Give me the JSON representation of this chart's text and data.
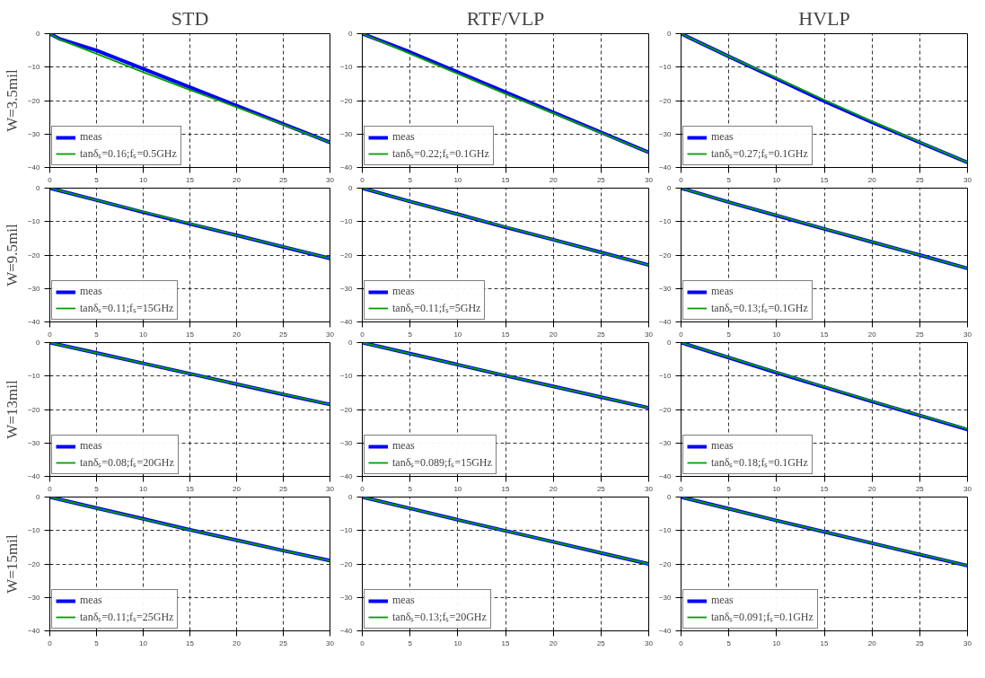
{
  "chart_data": [
    {
      "type": "line",
      "title": "STD",
      "ylabel": "W=3.5mil",
      "x": [
        0,
        1,
        5,
        10,
        15,
        20,
        25,
        30
      ],
      "xlim": [
        0,
        30
      ],
      "ylim": [
        -40,
        0
      ],
      "xticks": [
        0,
        5,
        10,
        15,
        20,
        25,
        30
      ],
      "yticks": [
        0,
        -10,
        -20,
        -30,
        -40
      ],
      "grid": true,
      "legend": "bottom left",
      "series": [
        {
          "name": "meas",
          "color": "#0000ff",
          "values": [
            0,
            -1.5,
            -5,
            -10.5,
            -16,
            -21.5,
            -27,
            -32.5
          ]
        },
        {
          "name": "tanδₛ=0.16;fₛ=0.5GHz",
          "color": "#00a000",
          "values": [
            0,
            -1.7,
            -6,
            -11.5,
            -16.8,
            -22,
            -27.2,
            -32.5
          ]
        }
      ]
    },
    {
      "type": "line",
      "title": "RTF/VLP",
      "x": [
        0,
        5,
        10,
        15,
        20,
        25,
        30
      ],
      "xlim": [
        0,
        30
      ],
      "ylim": [
        -40,
        0
      ],
      "xticks": [
        0,
        5,
        10,
        15,
        20,
        25,
        30
      ],
      "yticks": [
        0,
        -10,
        -20,
        -30,
        -40
      ],
      "grid": true,
      "legend": "bottom left",
      "series": [
        {
          "name": "meas",
          "color": "#0000ff",
          "values": [
            0,
            -5.5,
            -11.5,
            -17.5,
            -23.5,
            -29.5,
            -35.5
          ]
        },
        {
          "name": "tanδₛ=0.22;fₛ=0.1GHz",
          "color": "#00a000",
          "values": [
            0,
            -6,
            -12,
            -18,
            -23.8,
            -29.7,
            -35.5
          ]
        }
      ]
    },
    {
      "type": "line",
      "title": "HVLP",
      "x": [
        0,
        5,
        10,
        15,
        20,
        25,
        30
      ],
      "xlim": [
        0,
        30
      ],
      "ylim": [
        -40,
        0
      ],
      "xticks": [
        0,
        5,
        10,
        15,
        20,
        25,
        30
      ],
      "yticks": [
        0,
        -10,
        -20,
        -30,
        -40
      ],
      "grid": true,
      "legend": "bottom left",
      "series": [
        {
          "name": "meas",
          "color": "#0000ff",
          "values": [
            0,
            -6.8,
            -13.5,
            -20.2,
            -26.5,
            -32.5,
            -38.5
          ]
        },
        {
          "name": "tanδₛ=0.27;fₛ=0.1GHz",
          "color": "#00a000",
          "values": [
            0,
            -6.8,
            -13.2,
            -19.8,
            -26.2,
            -32.4,
            -38.5
          ]
        }
      ]
    },
    {
      "type": "line",
      "ylabel": "W=9.5mil",
      "x": [
        0,
        5,
        10,
        15,
        20,
        25,
        30
      ],
      "xlim": [
        0,
        30
      ],
      "ylim": [
        -40,
        0
      ],
      "xticks": [
        0,
        5,
        10,
        15,
        20,
        25,
        30
      ],
      "yticks": [
        0,
        -10,
        -20,
        -30,
        -40
      ],
      "grid": true,
      "legend": "bottom left",
      "series": [
        {
          "name": "meas",
          "color": "#0000ff",
          "values": [
            0,
            -3.6,
            -7.2,
            -10.7,
            -14.1,
            -17.6,
            -21
          ]
        },
        {
          "name": "tanδₛ=0.11;fₛ=15GHz",
          "color": "#00a000",
          "values": [
            0,
            -3.6,
            -7.1,
            -10.6,
            -14.1,
            -17.5,
            -21
          ]
        }
      ]
    },
    {
      "type": "line",
      "x": [
        0,
        5,
        10,
        15,
        20,
        25,
        30
      ],
      "xlim": [
        0,
        30
      ],
      "ylim": [
        -40,
        0
      ],
      "xticks": [
        0,
        5,
        10,
        15,
        20,
        25,
        30
      ],
      "yticks": [
        0,
        -10,
        -20,
        -30,
        -40
      ],
      "grid": true,
      "legend": "bottom left",
      "series": [
        {
          "name": "meas",
          "color": "#0000ff",
          "values": [
            0,
            -4,
            -7.8,
            -11.7,
            -15.4,
            -19.2,
            -23
          ]
        },
        {
          "name": "tanδₛ=0.11;fₛ=5GHz",
          "color": "#00a000",
          "values": [
            0,
            -4,
            -7.8,
            -11.6,
            -15.4,
            -19.2,
            -23
          ]
        }
      ]
    },
    {
      "type": "line",
      "x": [
        0,
        5,
        10,
        15,
        20,
        25,
        30
      ],
      "xlim": [
        0,
        30
      ],
      "ylim": [
        -40,
        0
      ],
      "xticks": [
        0,
        5,
        10,
        15,
        20,
        25,
        30
      ],
      "yticks": [
        0,
        -10,
        -20,
        -30,
        -40
      ],
      "grid": true,
      "legend": "bottom left",
      "series": [
        {
          "name": "meas",
          "color": "#0000ff",
          "values": [
            0,
            -4.2,
            -8.2,
            -12.2,
            -16.1,
            -20,
            -24
          ]
        },
        {
          "name": "tanδₛ=0.13;fₛ=0.1GHz",
          "color": "#00a000",
          "values": [
            0,
            -4.2,
            -8.1,
            -12.1,
            -16.1,
            -20,
            -24
          ]
        }
      ]
    },
    {
      "type": "line",
      "ylabel": "W=13mil",
      "x": [
        0,
        5,
        10,
        15,
        20,
        25,
        30
      ],
      "xlim": [
        0,
        30
      ],
      "ylim": [
        -40,
        0
      ],
      "xticks": [
        0,
        5,
        10,
        15,
        20,
        25,
        30
      ],
      "yticks": [
        0,
        -10,
        -20,
        -30,
        -40
      ],
      "grid": true,
      "legend": "bottom left",
      "series": [
        {
          "name": "meas",
          "color": "#0000ff",
          "values": [
            0,
            -3.1,
            -6.2,
            -9.3,
            -12.4,
            -15.5,
            -18.5
          ]
        },
        {
          "name": "tanδₛ=0.08;fₛ=20GHz",
          "color": "#00a000",
          "values": [
            0,
            -3.1,
            -6.2,
            -9.3,
            -12.4,
            -15.4,
            -18.5
          ]
        }
      ]
    },
    {
      "type": "line",
      "x": [
        0,
        5,
        10,
        15,
        20,
        25,
        30
      ],
      "xlim": [
        0,
        30
      ],
      "ylim": [
        -40,
        0
      ],
      "xticks": [
        0,
        5,
        10,
        15,
        20,
        25,
        30
      ],
      "yticks": [
        0,
        -10,
        -20,
        -30,
        -40
      ],
      "grid": true,
      "legend": "bottom left",
      "series": [
        {
          "name": "meas",
          "color": "#0000ff",
          "values": [
            0,
            -3.3,
            -6.6,
            -9.9,
            -13.1,
            -16.3,
            -19.5
          ]
        },
        {
          "name": "tanδₛ=0.089;fₛ=15GHz",
          "color": "#00a000",
          "values": [
            0,
            -3.3,
            -6.6,
            -9.8,
            -13.1,
            -16.3,
            -19.5
          ]
        }
      ]
    },
    {
      "type": "line",
      "x": [
        0,
        5,
        10,
        15,
        20,
        25,
        30
      ],
      "xlim": [
        0,
        30
      ],
      "ylim": [
        -40,
        0
      ],
      "xticks": [
        0,
        5,
        10,
        15,
        20,
        25,
        30
      ],
      "yticks": [
        0,
        -10,
        -20,
        -30,
        -40
      ],
      "grid": true,
      "legend": "bottom left",
      "series": [
        {
          "name": "meas",
          "color": "#0000ff",
          "values": [
            0,
            -4.5,
            -9,
            -13.3,
            -17.6,
            -21.8,
            -26
          ]
        },
        {
          "name": "tanδₛ=0.18;fₛ=0.1GHz",
          "color": "#00a000",
          "values": [
            0,
            -4.4,
            -8.8,
            -13.2,
            -17.5,
            -21.7,
            -25.8
          ]
        }
      ]
    },
    {
      "type": "line",
      "ylabel": "W=15mil",
      "x": [
        0,
        5,
        10,
        15,
        20,
        25,
        30
      ],
      "xlim": [
        0,
        30
      ],
      "ylim": [
        -40,
        0
      ],
      "xticks": [
        0,
        5,
        10,
        15,
        20,
        25,
        30
      ],
      "yticks": [
        0,
        -10,
        -20,
        -30,
        -40
      ],
      "grid": true,
      "legend": "bottom left",
      "series": [
        {
          "name": "meas",
          "color": "#0000ff",
          "values": [
            0,
            -3.3,
            -6.5,
            -9.8,
            -12.9,
            -16,
            -19
          ]
        },
        {
          "name": "tanδₛ=0.11;fₛ=25GHz",
          "color": "#00a000",
          "values": [
            0,
            -3.3,
            -6.6,
            -9.8,
            -12.9,
            -16,
            -19
          ]
        }
      ]
    },
    {
      "type": "line",
      "x": [
        0,
        5,
        10,
        15,
        20,
        25,
        30
      ],
      "xlim": [
        0,
        30
      ],
      "ylim": [
        -40,
        0
      ],
      "xticks": [
        0,
        5,
        10,
        15,
        20,
        25,
        30
      ],
      "yticks": [
        0,
        -10,
        -20,
        -30,
        -40
      ],
      "grid": true,
      "legend": "bottom left",
      "series": [
        {
          "name": "meas",
          "color": "#0000ff",
          "values": [
            0,
            -3.4,
            -6.8,
            -10.1,
            -13.4,
            -16.7,
            -20
          ]
        },
        {
          "name": "tanδₛ=0.13;fₛ=20GHz",
          "color": "#00a000",
          "values": [
            0,
            -3.4,
            -6.8,
            -10.1,
            -13.4,
            -16.7,
            -20
          ]
        }
      ]
    },
    {
      "type": "line",
      "x": [
        0,
        5,
        10,
        15,
        20,
        25,
        30
      ],
      "xlim": [
        0,
        30
      ],
      "ylim": [
        -40,
        0
      ],
      "xticks": [
        0,
        5,
        10,
        15,
        20,
        25,
        30
      ],
      "yticks": [
        0,
        -10,
        -20,
        -30,
        -40
      ],
      "grid": true,
      "legend": "bottom left",
      "series": [
        {
          "name": "meas",
          "color": "#0000ff",
          "values": [
            0,
            -3.5,
            -7,
            -10.4,
            -13.8,
            -17.2,
            -20.5
          ]
        },
        {
          "name": "tanδₛ=0.091;fₛ=0.1GHz",
          "color": "#00a000",
          "values": [
            0,
            -3.5,
            -7,
            -10.4,
            -13.8,
            -17.1,
            -20.5
          ]
        }
      ]
    }
  ]
}
